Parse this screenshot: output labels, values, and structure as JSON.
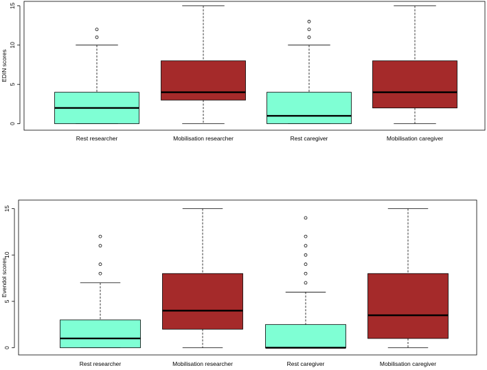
{
  "colors": {
    "rest": "#7fffd4",
    "mobilisation": "#a52a2a",
    "median": "#000000"
  },
  "chart_data": [
    {
      "type": "boxplot",
      "ylabel": "EDIN scores",
      "ylim": [
        0,
        15
      ],
      "yticks": [
        0,
        5,
        10,
        15
      ],
      "ytick_labels": [
        "0",
        "5",
        "10",
        "15"
      ],
      "categories": [
        "Rest researcher",
        "Mobilisation researcher",
        "Rest caregiver",
        "Mobilisation caregiver"
      ],
      "boxes": [
        {
          "name": "Rest researcher",
          "group": "rest",
          "whisker_low": 0,
          "q1": 0,
          "median": 2,
          "q3": 4,
          "whisker_high": 10,
          "outliers": [
            11,
            12
          ]
        },
        {
          "name": "Mobilisation researcher",
          "group": "mobilisation",
          "whisker_low": 0,
          "q1": 3,
          "median": 4,
          "q3": 8,
          "whisker_high": 15,
          "outliers": []
        },
        {
          "name": "Rest caregiver",
          "group": "rest",
          "whisker_low": 0,
          "q1": 0,
          "median": 1,
          "q3": 4,
          "whisker_high": 10,
          "outliers": [
            11,
            12,
            13
          ]
        },
        {
          "name": "Mobilisation caregiver",
          "group": "mobilisation",
          "whisker_low": 0,
          "q1": 2,
          "median": 4,
          "q3": 8,
          "whisker_high": 15,
          "outliers": []
        }
      ]
    },
    {
      "type": "boxplot",
      "ylabel": "Evendol scores",
      "ylim": [
        0,
        15
      ],
      "yticks": [
        0,
        5,
        10,
        15
      ],
      "ytick_labels": [
        "0",
        "5",
        "10",
        "15"
      ],
      "categories": [
        "Rest researcher",
        "Mobilisation researcher",
        "Rest caregiver",
        "Mobilisation caregiver"
      ],
      "boxes": [
        {
          "name": "Rest researcher",
          "group": "rest",
          "whisker_low": 0,
          "q1": 0,
          "median": 1,
          "q3": 3,
          "whisker_high": 7,
          "outliers": [
            8,
            9,
            11,
            12
          ]
        },
        {
          "name": "Mobilisation researcher",
          "group": "mobilisation",
          "whisker_low": 0,
          "q1": 2,
          "median": 4,
          "q3": 8,
          "whisker_high": 15,
          "outliers": []
        },
        {
          "name": "Rest caregiver",
          "group": "rest",
          "whisker_low": 0,
          "q1": 0,
          "median": 0,
          "q3": 2.5,
          "whisker_high": 6,
          "outliers": [
            7,
            8,
            9,
            10,
            11,
            12,
            14
          ]
        },
        {
          "name": "Mobilisation caregiver",
          "group": "mobilisation",
          "whisker_low": 0,
          "q1": 1,
          "median": 3.5,
          "q3": 8,
          "whisker_high": 15,
          "outliers": []
        }
      ]
    }
  ]
}
